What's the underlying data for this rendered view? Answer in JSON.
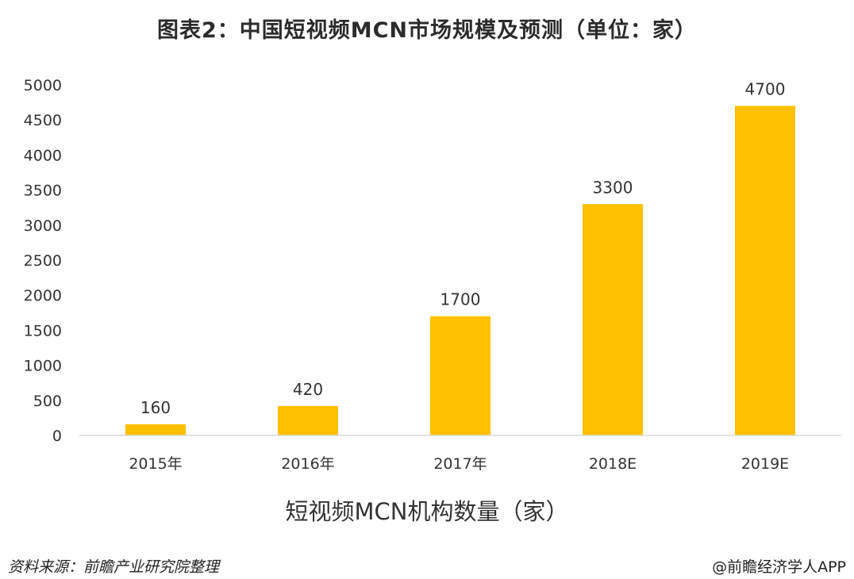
{
  "header": {
    "title": "图表2：中国短视频MCN市场规模及预测（单位：家）"
  },
  "footer": {
    "source": "资料来源：前瞻产业研究院整理",
    "credit": "@前瞻经济学人APP"
  },
  "chart_data": {
    "type": "bar",
    "title": "图表2：中国短视频MCN市场规模及预测（单位：家）",
    "categories": [
      "2015年",
      "2016年",
      "2017年",
      "2018E",
      "2019E"
    ],
    "series": [
      {
        "name": "短视频MCN机构数量（家）",
        "values": [
          160,
          420,
          1700,
          3300,
          4700
        ]
      }
    ],
    "data_labels": [
      "160",
      "420",
      "1700",
      "3300",
      "4700"
    ],
    "xlabel": "",
    "ylabel": "",
    "ylim": [
      0,
      5000
    ],
    "yticks": [
      0,
      500,
      1000,
      1500,
      2000,
      2500,
      3000,
      3500,
      4000,
      4500,
      5000
    ],
    "grid": false,
    "legend": "bottom",
    "bar_color": "#FFC000"
  }
}
